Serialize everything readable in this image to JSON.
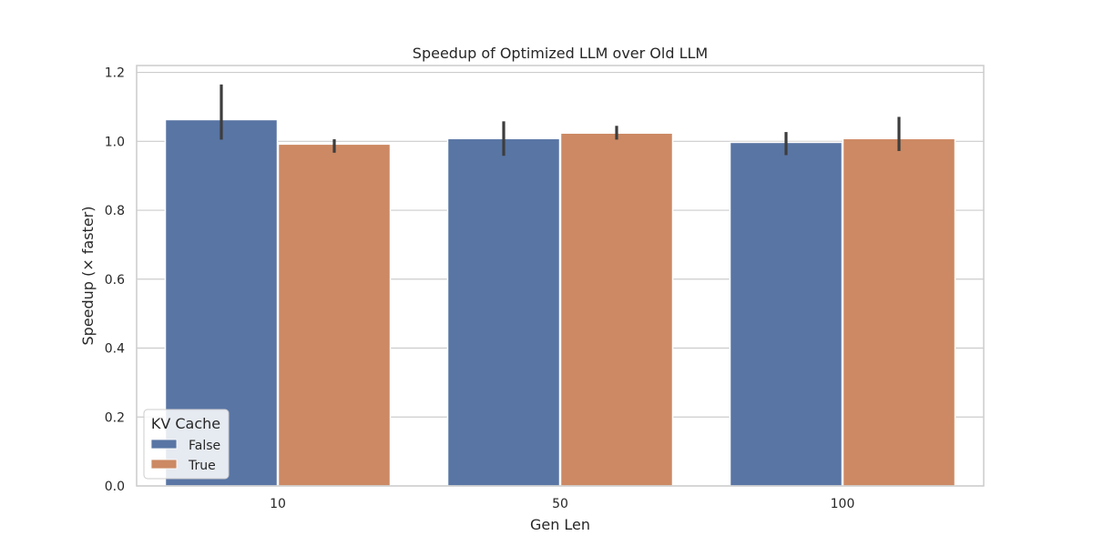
{
  "chart_data": {
    "type": "bar",
    "title": "Speedup of Optimized LLM over Old LLM",
    "xlabel": "Gen Len",
    "ylabel": "Speedup (× faster)",
    "categories": [
      "10",
      "50",
      "100"
    ],
    "ylim": [
      0,
      1.22
    ],
    "yticks": [
      0.0,
      0.2,
      0.4,
      0.6,
      0.8,
      1.0,
      1.2
    ],
    "grid": true,
    "legend": {
      "title": "KV Cache",
      "position": "lower-left"
    },
    "series": [
      {
        "name": "False",
        "color": "#5875a4",
        "values": [
          1.063,
          1.008,
          0.997
        ],
        "error_low": [
          1.005,
          0.958,
          0.96
        ],
        "error_high": [
          1.165,
          1.058,
          1.027
        ]
      },
      {
        "name": "True",
        "color": "#cc8963",
        "values": [
          0.992,
          1.024,
          1.008
        ],
        "error_low": [
          0.967,
          1.005,
          0.972
        ],
        "error_high": [
          1.006,
          1.045,
          1.071
        ]
      }
    ]
  }
}
